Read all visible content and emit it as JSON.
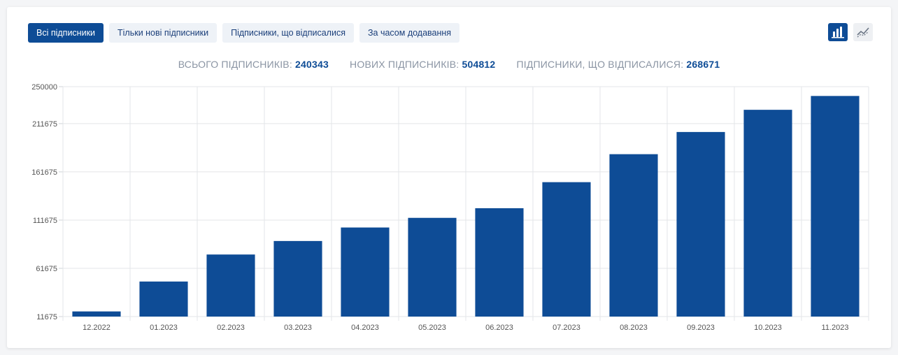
{
  "tabs": [
    {
      "label": "Всі підписники",
      "active": true
    },
    {
      "label": "Тільки нові підписники",
      "active": false
    },
    {
      "label": "Підписники, що відписалися",
      "active": false
    },
    {
      "label": "За часом додавання",
      "active": false
    }
  ],
  "view_toggle": {
    "bar_icon": "bar-chart-icon",
    "line_icon": "line-chart-icon",
    "active": "bar"
  },
  "summary": {
    "total_label": "ВСЬОГО ПІДПИСНИКІВ:",
    "total_value": "240343",
    "new_label": "НОВИХ ПІДПИСНИКІВ:",
    "new_value": "504812",
    "unsub_label": "ПІДПИСНИКИ, ЩО ВІДПИСАЛИСЯ:",
    "unsub_value": "268671"
  },
  "colors": {
    "bar": "#0e4c96",
    "accent": "#0e4c96"
  },
  "chart_data": {
    "type": "bar",
    "categories": [
      "12.2022",
      "01.2023",
      "02.2023",
      "03.2023",
      "04.2023",
      "05.2023",
      "06.2023",
      "07.2023",
      "08.2023",
      "09.2023",
      "10.2023",
      "11.2023"
    ],
    "values": [
      17000,
      48000,
      76000,
      90000,
      104000,
      114000,
      124000,
      151000,
      180000,
      203000,
      226000,
      240343
    ],
    "ylim": [
      11675,
      250000
    ],
    "yticks": [
      11675,
      61675,
      111675,
      161675,
      211675,
      250000
    ],
    "grid": true,
    "title": "",
    "xlabel": "",
    "ylabel": ""
  }
}
